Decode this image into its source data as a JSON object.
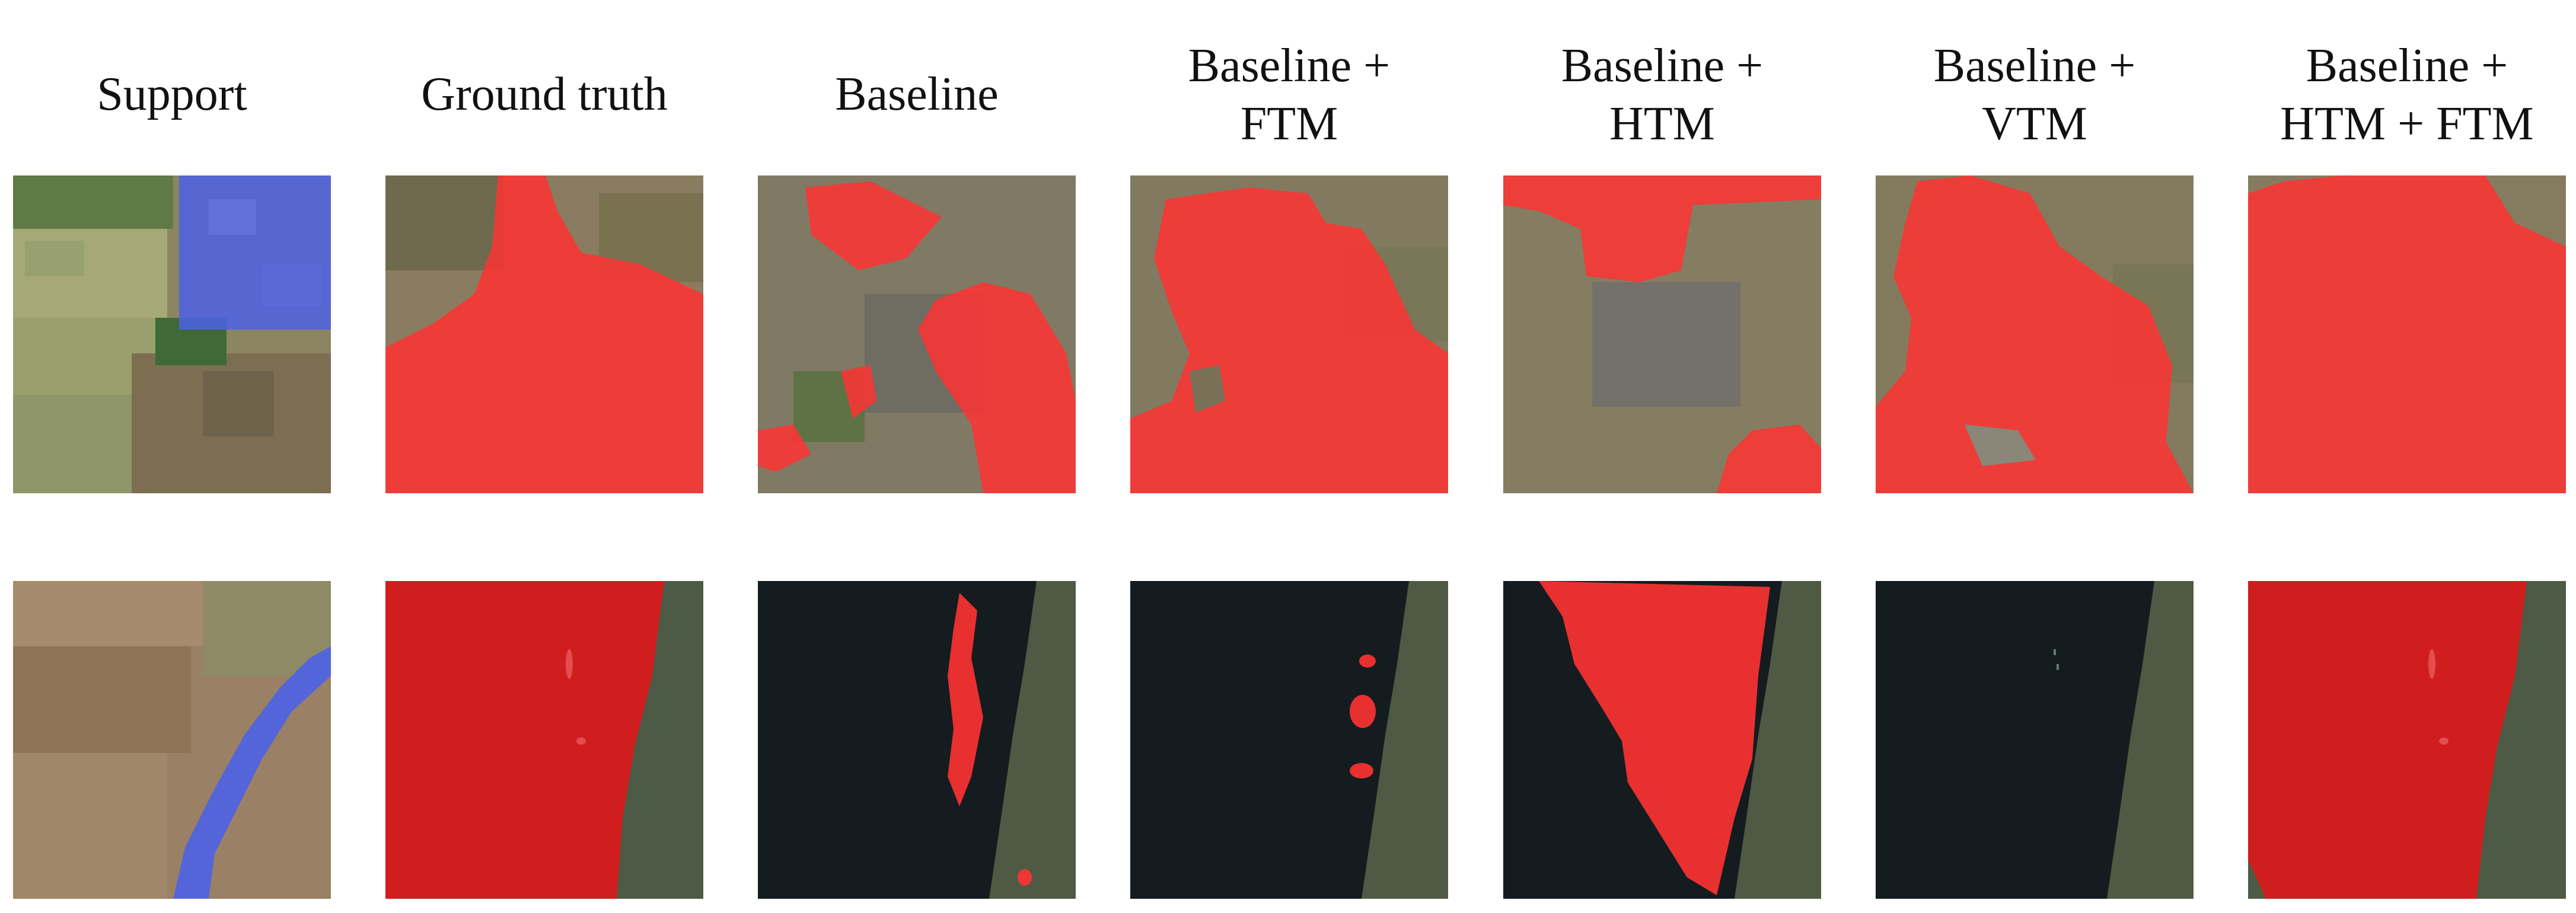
{
  "columns": [
    {
      "id": "support",
      "label": "Support"
    },
    {
      "id": "ground-truth",
      "label": "Ground truth"
    },
    {
      "id": "baseline",
      "label": "Baseline"
    },
    {
      "id": "baseline-ftm",
      "label": "Baseline +\nFTM"
    },
    {
      "id": "baseline-htm",
      "label": "Baseline +\nHTM"
    },
    {
      "id": "baseline-vtm",
      "label": "Baseline +\nVTM"
    },
    {
      "id": "baseline-htm-ftm",
      "label": "Baseline +\nHTM + FTM"
    }
  ],
  "overlay_colors": {
    "support_mask": "#4c62e6",
    "prediction_mask": "#ff3333",
    "water": "#141c1f"
  }
}
